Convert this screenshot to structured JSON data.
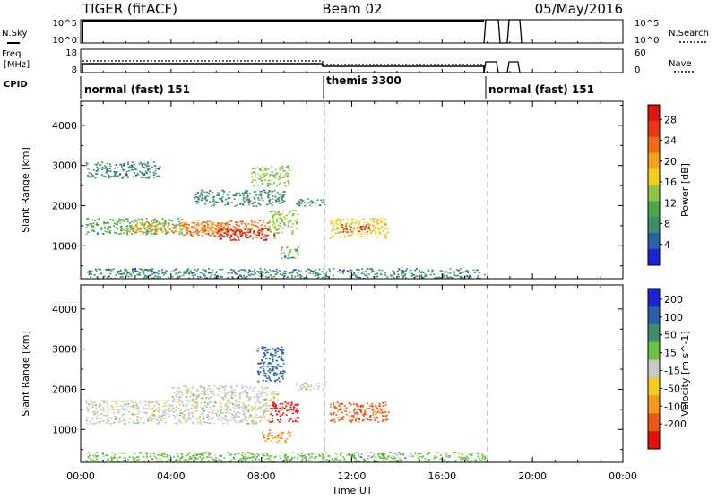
{
  "header": {
    "radar": "TIGER (fitACF)",
    "beam": "Beam 02",
    "date": "05/May/2016"
  },
  "nsky_panel": {
    "label": "N.Sky",
    "ticks_left": [
      "10^5",
      "10^0"
    ],
    "ticks_right": [
      "10^5",
      "10^0"
    ],
    "right_label": "N.Search"
  },
  "freq_panel": {
    "label_line1": "Freq.",
    "label_line2": "[MHz]",
    "ticks_left": [
      "18",
      "8"
    ],
    "ticks_right": [
      "60",
      "0"
    ],
    "right_label": "Nave"
  },
  "cpid": {
    "label": "CPID",
    "segments": [
      {
        "name": "normal (fast) 151",
        "start": 0,
        "end": 10.8
      },
      {
        "name": "themis 3300",
        "start": 10.8,
        "end": 18.0
      },
      {
        "name": "normal (fast) 151",
        "start": 18.0,
        "end": 24
      }
    ]
  },
  "axes": {
    "xlabel": "Time UT",
    "ylabel": "Slant Range [km]",
    "x_ticks": [
      "00:00",
      "04:00",
      "08:00",
      "12:00",
      "16:00",
      "20:00",
      "00:00"
    ],
    "y_ticks": [
      "1000",
      "2000",
      "3000",
      "4000"
    ]
  },
  "power_colorbar": {
    "label": "Power [dB]",
    "ticks": [
      "4",
      "8",
      "12",
      "16",
      "20",
      "24",
      "28"
    ],
    "colors": [
      "#1a24d6",
      "#2a5fa8",
      "#3b8f6e",
      "#49a84a",
      "#8ec63f",
      "#f2cf1d",
      "#f7a21b",
      "#ef6b16",
      "#e83a12",
      "#e0140f"
    ]
  },
  "velocity_colorbar": {
    "label": "Velocity [m s^-1]",
    "ticks": [
      "200",
      "100",
      "50",
      "15",
      "-15",
      "-50",
      "-100",
      "-200"
    ],
    "colors": [
      "#1a24d6",
      "#2a5fa8",
      "#3b8f6e",
      "#6cc23c",
      "#c8c8c8",
      "#f5cb1f",
      "#f39a1a",
      "#ec5a14",
      "#e0140f"
    ]
  },
  "chart_data": [
    {
      "type": "heatmap",
      "title": "Power",
      "xlabel": "Time UT",
      "ylabel": "Slant Range [km]",
      "xlim": [
        0,
        24
      ],
      "ylim": [
        180,
        4600
      ],
      "color_range": [
        0,
        30
      ],
      "regions": [
        {
          "t0": 0.2,
          "t1": 4.5,
          "r0": 1300,
          "r1": 1700,
          "value": 10
        },
        {
          "t0": 2.0,
          "t1": 6.5,
          "r0": 1350,
          "r1": 1600,
          "value": 18
        },
        {
          "t0": 4.5,
          "t1": 8.3,
          "r0": 1250,
          "r1": 1650,
          "value": 22
        },
        {
          "t0": 6.0,
          "t1": 8.6,
          "r0": 1150,
          "r1": 1450,
          "value": 27
        },
        {
          "t0": 8.3,
          "t1": 9.6,
          "r0": 1300,
          "r1": 1900,
          "value": 14
        },
        {
          "t0": 5.0,
          "t1": 9.0,
          "r0": 2000,
          "r1": 2400,
          "value": 8
        },
        {
          "t0": 7.5,
          "t1": 9.2,
          "r0": 2500,
          "r1": 3000,
          "value": 12
        },
        {
          "t0": 8.8,
          "t1": 9.6,
          "r0": 700,
          "r1": 1000,
          "value": 9
        },
        {
          "t0": 9.5,
          "t1": 10.8,
          "r0": 2000,
          "r1": 2200,
          "value": 6
        },
        {
          "t0": 11.0,
          "t1": 13.6,
          "r0": 1200,
          "r1": 1700,
          "value": 16
        },
        {
          "t0": 11.5,
          "t1": 12.8,
          "r0": 1350,
          "r1": 1550,
          "value": 24
        },
        {
          "t0": 0.2,
          "t1": 17.9,
          "r0": 200,
          "r1": 450,
          "value": 6
        },
        {
          "t0": 0.2,
          "t1": 3.5,
          "r0": 2700,
          "r1": 3100,
          "value": 6
        }
      ]
    },
    {
      "type": "heatmap",
      "title": "Velocity",
      "xlabel": "Time UT",
      "ylabel": "Slant Range [km]",
      "xlim": [
        0,
        24
      ],
      "ylim": [
        180,
        4600
      ],
      "color_range": [
        -200,
        200
      ],
      "regions": [
        {
          "t0": 0.2,
          "t1": 8.5,
          "r0": 1150,
          "r1": 1750,
          "value": 0
        },
        {
          "t0": 4.0,
          "t1": 8.7,
          "r0": 1750,
          "r1": 2100,
          "value": 0
        },
        {
          "t0": 8.3,
          "t1": 9.6,
          "r0": 1200,
          "r1": 1700,
          "value": -180
        },
        {
          "t0": 7.8,
          "t1": 9.0,
          "r0": 2200,
          "r1": 3100,
          "value": 140
        },
        {
          "t0": 8.0,
          "t1": 9.3,
          "r0": 700,
          "r1": 1000,
          "value": -70
        },
        {
          "t0": 11.0,
          "t1": 13.6,
          "r0": 1200,
          "r1": 1700,
          "value": -120
        },
        {
          "t0": 0.2,
          "t1": 17.9,
          "r0": 200,
          "r1": 450,
          "value": 30
        },
        {
          "t0": 9.5,
          "t1": 10.8,
          "r0": 2000,
          "r1": 2200,
          "value": 0
        }
      ]
    }
  ]
}
